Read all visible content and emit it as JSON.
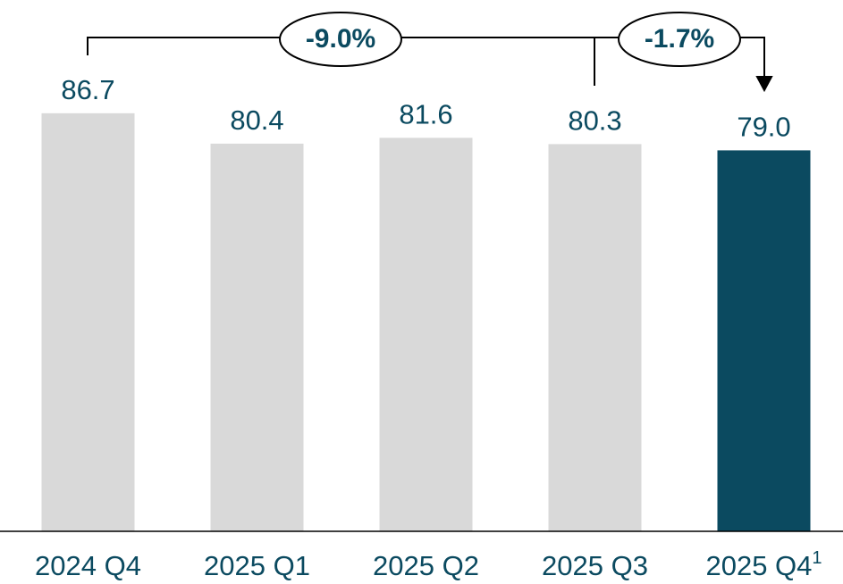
{
  "chart_data": {
    "type": "bar",
    "categories": [
      "2024 Q4",
      "2025 Q1",
      "2025 Q2",
      "2025 Q3",
      "2025 Q4"
    ],
    "footnote_mark": "1",
    "values": [
      86.7,
      80.4,
      81.6,
      80.3,
      79.0
    ],
    "value_labels": [
      "86.7",
      "80.4",
      "81.6",
      "80.3",
      "79.0"
    ],
    "colors": [
      "#d9d9d9",
      "#d9d9d9",
      "#d9d9d9",
      "#d9d9d9",
      "#0b4a60"
    ],
    "ylim": [
      0,
      110
    ],
    "annotations": [
      "-9.0%",
      "-1.7%"
    ]
  }
}
